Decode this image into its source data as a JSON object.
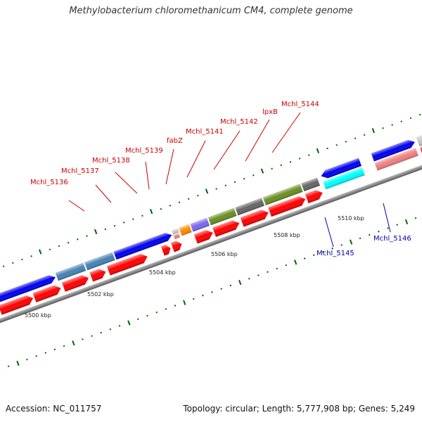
{
  "title": "Methylobacterium chloromethanicum CM4, complete genome",
  "footer": {
    "accession": "Accession: NC_011757",
    "summary": "Topology: circular; Length: 5,777,908 bp; Genes: 5,249"
  },
  "scale_labels": [
    "5500 kbp",
    "5502 kbp",
    "5504 kbp",
    "5506 kbp",
    "5508 kbp",
    "5510 kbp"
  ],
  "gene_labels_red": [
    "Mchl_5136",
    "Mchl_5137",
    "Mchl_5138",
    "Mchl_5139",
    "fabZ",
    "Mchl_5141",
    "Mchl_5142",
    "lpxB",
    "Mchl_5144"
  ],
  "gene_labels_blue": [
    "Mchl_5145",
    "Mchl_5146"
  ],
  "colors": {
    "cds": "#ff0000",
    "blue": "#0000ee",
    "steelblue": "#4682b4",
    "olive": "#6b8e23",
    "gray": "#666666",
    "cyan": "#00ffff",
    "salmon": "#f08080",
    "lightgray": "#c8c8c8",
    "purple": "#7b68ee",
    "orange": "#ff8c00",
    "tick": "#006400",
    "backbone": "#808080",
    "label_red": "#cc0000",
    "label_blue": "#0000aa"
  }
}
